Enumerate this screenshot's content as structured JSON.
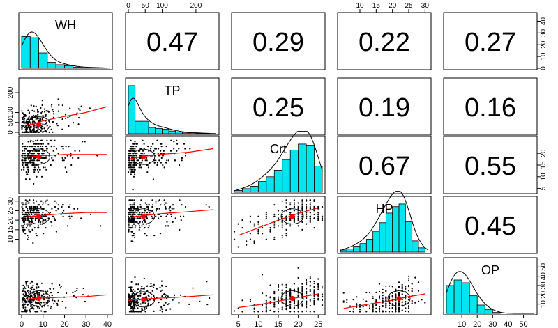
{
  "chart_data": {
    "type": "scatter",
    "title": "",
    "variables": [
      "WH",
      "TP",
      "Crt",
      "HP",
      "OP"
    ],
    "colors": {
      "hist_fill": "#00e5ee",
      "point": "#000000",
      "smooth": "#ff0000",
      "center": "#ff0000",
      "ellipse": "#000000",
      "density": "#000000"
    },
    "axes": {
      "WH": {
        "lim": [
          0,
          41
        ],
        "ticks": [
          0,
          10,
          20,
          30,
          40
        ]
      },
      "TP": {
        "lim": [
          0,
          260
        ],
        "ticks": [
          0,
          50,
          100,
          200
        ]
      },
      "Crt": {
        "lim": [
          4,
          26
        ],
        "ticks": [
          5,
          10,
          15,
          20,
          25
        ]
      },
      "HP": {
        "lim": [
          4,
          31
        ],
        "ticks": [
          10,
          15,
          20,
          25,
          30
        ]
      },
      "OP": {
        "lim": [
          0,
          57
        ],
        "ticks": [
          10,
          20,
          30,
          40,
          50
        ]
      }
    },
    "tick_sides": {
      "top": [
        1,
        3
      ],
      "bottom": [
        0,
        2,
        4
      ],
      "left": [
        1,
        3
      ],
      "right": [
        0,
        2,
        4
      ]
    },
    "correlations": [
      {
        "row": 0,
        "col": 1,
        "value": "0.47"
      },
      {
        "row": 0,
        "col": 2,
        "value": "0.29"
      },
      {
        "row": 0,
        "col": 3,
        "value": "0.22"
      },
      {
        "row": 0,
        "col": 4,
        "value": "0.27"
      },
      {
        "row": 1,
        "col": 2,
        "value": "0.25"
      },
      {
        "row": 1,
        "col": 3,
        "value": "0.19"
      },
      {
        "row": 1,
        "col": 4,
        "value": "0.16"
      },
      {
        "row": 2,
        "col": 3,
        "value": "0.67"
      },
      {
        "row": 2,
        "col": 4,
        "value": "0.55"
      },
      {
        "row": 3,
        "col": 4,
        "value": "0.45"
      }
    ],
    "histograms": {
      "WH": {
        "breaks": [
          0,
          4,
          8,
          12,
          16,
          20,
          24,
          28,
          32,
          36,
          40
        ],
        "counts": [
          27,
          26,
          13,
          5,
          3,
          2,
          1,
          0.5,
          0.5,
          0.3
        ],
        "ymax": 45,
        "right_ticks": [
          0,
          10,
          20,
          30,
          40
        ]
      },
      "TP": {
        "breaks": [
          0,
          20,
          40,
          60,
          80,
          100,
          120,
          140,
          160,
          180,
          200,
          220,
          240
        ],
        "counts": [
          54,
          14,
          14,
          7,
          6,
          5,
          3,
          2,
          1,
          1,
          0.5,
          0.5
        ]
      },
      "Crt": {
        "breaks": [
          4,
          6,
          8,
          10,
          12,
          14,
          16,
          18,
          20,
          22,
          24,
          26
        ],
        "counts": [
          3,
          6,
          10,
          18,
          26,
          37,
          55,
          71,
          81,
          79,
          44
        ]
      },
      "HP": {
        "breaks": [
          4,
          6,
          8,
          10,
          12,
          14,
          16,
          18,
          20,
          22,
          24,
          26,
          28,
          30
        ],
        "counts": [
          4,
          6,
          11,
          16,
          24,
          39,
          55,
          73,
          85,
          90,
          57,
          21,
          8
        ]
      },
      "OP": {
        "breaks": [
          0,
          5,
          10,
          15,
          20,
          25,
          30,
          35
        ],
        "counts": [
          30,
          36,
          33,
          19,
          9,
          4,
          1
        ],
        "ymax": 57,
        "right_ticks": [
          10,
          20,
          30,
          40,
          50
        ]
      }
    },
    "pairs": [
      {
        "x": "WH",
        "y": "TP",
        "center": [
          8,
          40
        ],
        "smooth": [
          [
            0,
            35
          ],
          [
            5,
            40
          ],
          [
            10,
            58
          ],
          [
            20,
            80
          ],
          [
            30,
            100
          ],
          [
            40,
            130
          ]
        ]
      },
      {
        "x": "WH",
        "y": "Crt",
        "center": [
          8,
          18.6
        ],
        "smooth": [
          [
            0,
            18
          ],
          [
            5,
            18.6
          ],
          [
            10,
            19
          ],
          [
            20,
            19.5
          ],
          [
            30,
            19.5
          ],
          [
            40,
            19.5
          ]
        ]
      },
      {
        "x": "TP",
        "y": "Crt",
        "center": [
          45,
          18.5
        ],
        "smooth": [
          [
            0,
            17.5
          ],
          [
            40,
            18.6
          ],
          [
            100,
            19.6
          ],
          [
            180,
            20.5
          ],
          [
            250,
            22
          ]
        ]
      },
      {
        "x": "WH",
        "y": "HP",
        "center": [
          8,
          22
        ],
        "smooth": [
          [
            0,
            21.5
          ],
          [
            5,
            22
          ],
          [
            10,
            22.5
          ],
          [
            20,
            23.5
          ],
          [
            30,
            24
          ],
          [
            40,
            24
          ]
        ]
      },
      {
        "x": "TP",
        "y": "HP",
        "center": [
          45,
          22
        ],
        "smooth": [
          [
            0,
            21.5
          ],
          [
            50,
            22.5
          ],
          [
            100,
            23.5
          ],
          [
            180,
            24.5
          ],
          [
            250,
            25.5
          ]
        ]
      },
      {
        "x": "Crt",
        "y": "HP",
        "center": [
          18.5,
          22
        ],
        "smooth": [
          [
            5,
            12
          ],
          [
            10,
            16
          ],
          [
            15,
            20
          ],
          [
            20,
            23.5
          ],
          [
            25,
            26.5
          ]
        ]
      },
      {
        "x": "WH",
        "y": "OP",
        "center": [
          8,
          15
        ],
        "smooth": [
          [
            0,
            14
          ],
          [
            5,
            14.8
          ],
          [
            10,
            15.5
          ],
          [
            20,
            16.5
          ],
          [
            30,
            17
          ],
          [
            40,
            19
          ]
        ]
      },
      {
        "x": "TP",
        "y": "OP",
        "center": [
          45,
          14
        ],
        "smooth": [
          [
            0,
            13
          ],
          [
            50,
            14.5
          ],
          [
            100,
            15.5
          ],
          [
            180,
            17
          ],
          [
            250,
            19
          ]
        ]
      },
      {
        "x": "Crt",
        "y": "OP",
        "center": [
          18.5,
          15
        ],
        "smooth": [
          [
            5,
            5
          ],
          [
            10,
            8
          ],
          [
            15,
            12
          ],
          [
            20,
            16
          ],
          [
            25,
            20
          ]
        ]
      },
      {
        "x": "HP",
        "y": "OP",
        "center": [
          22,
          15
        ],
        "smooth": [
          [
            5,
            4
          ],
          [
            10,
            7
          ],
          [
            15,
            10
          ],
          [
            20,
            13
          ],
          [
            25,
            17
          ],
          [
            30,
            20
          ]
        ]
      }
    ]
  }
}
